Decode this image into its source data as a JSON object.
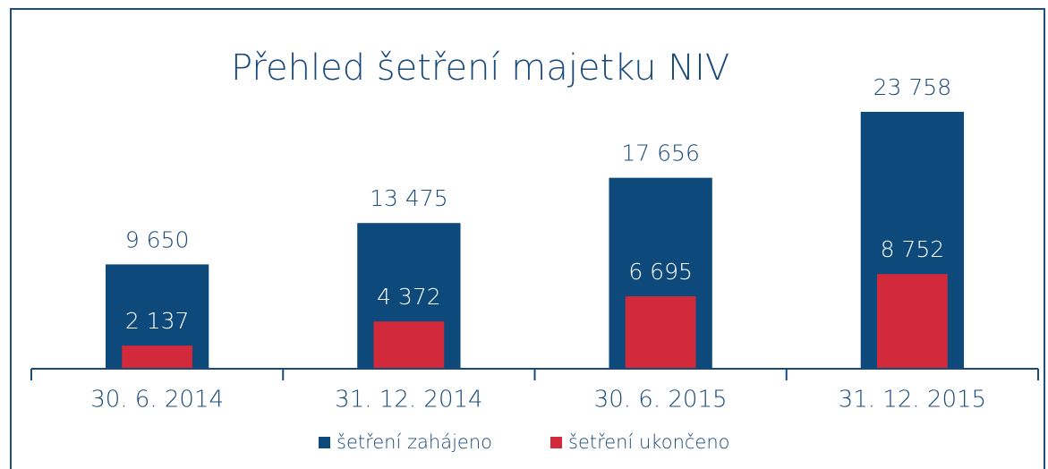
{
  "chart_data": {
    "type": "bar",
    "title": "Přehled šetření majetku NIV",
    "categories": [
      "30. 6. 2014",
      "31. 12. 2014",
      "30. 6. 2015",
      "31. 12. 2015"
    ],
    "series": [
      {
        "name": "šetření zahájeno",
        "color": "#0d4a7b",
        "values": [
          9650,
          13475,
          17656,
          23758
        ],
        "value_labels": [
          "9 650",
          "13 475",
          "17 656",
          "23 758"
        ]
      },
      {
        "name": "šetření ukončeno",
        "color": "#d32a3b",
        "values": [
          2137,
          4372,
          6695,
          8752
        ],
        "value_labels": [
          "2 137",
          "4 372",
          "6 695",
          "8 752"
        ]
      }
    ],
    "ylim": [
      0,
      24000
    ],
    "legend": "bottom"
  }
}
